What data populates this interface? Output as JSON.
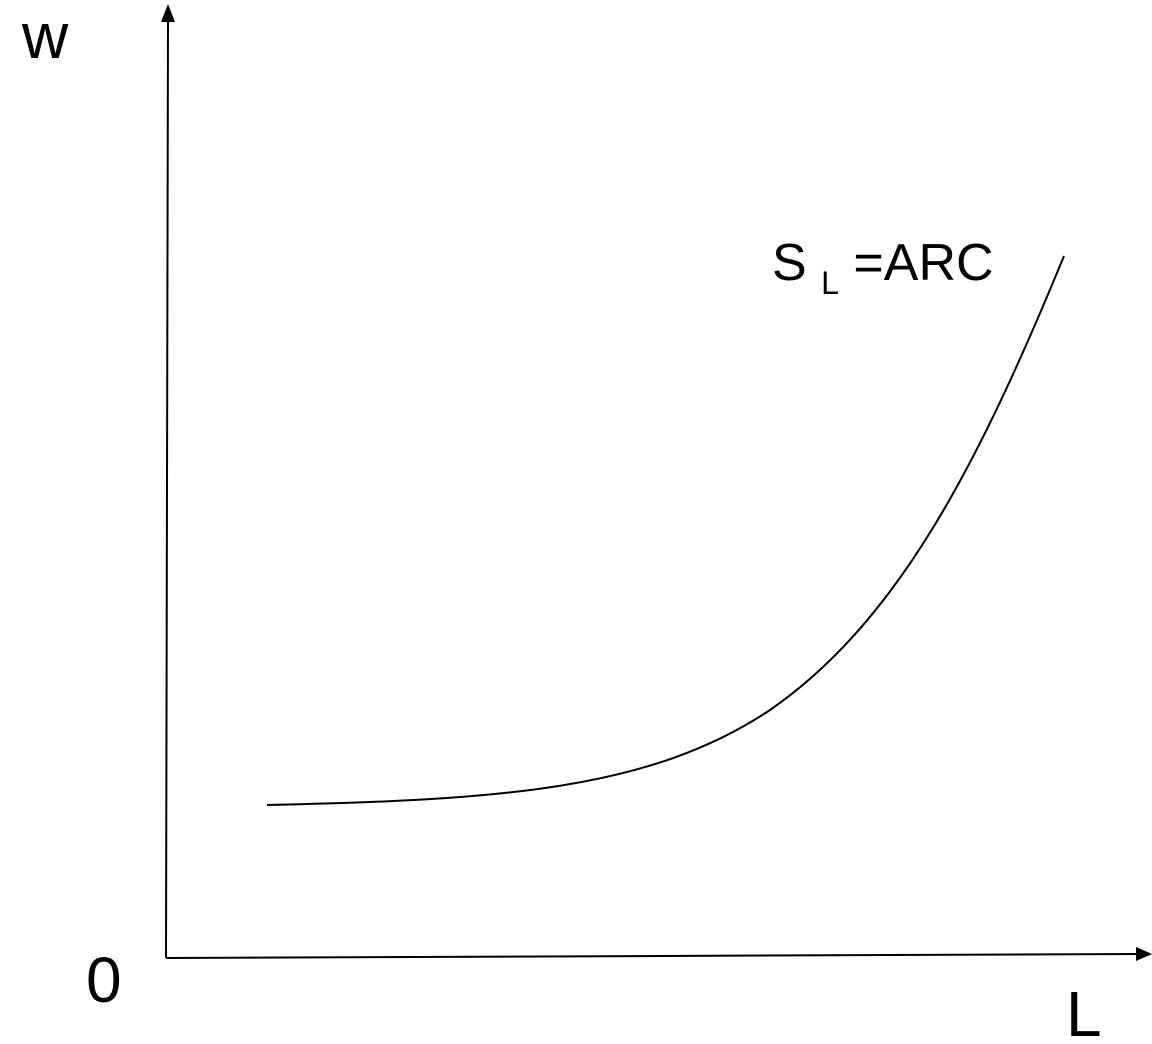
{
  "diagram": {
    "y_axis_label": "w",
    "x_axis_label": "L",
    "origin_label": "0",
    "curve": {
      "label_main": "S",
      "label_sub": "L",
      "label_rest": "=ARC"
    }
  }
}
